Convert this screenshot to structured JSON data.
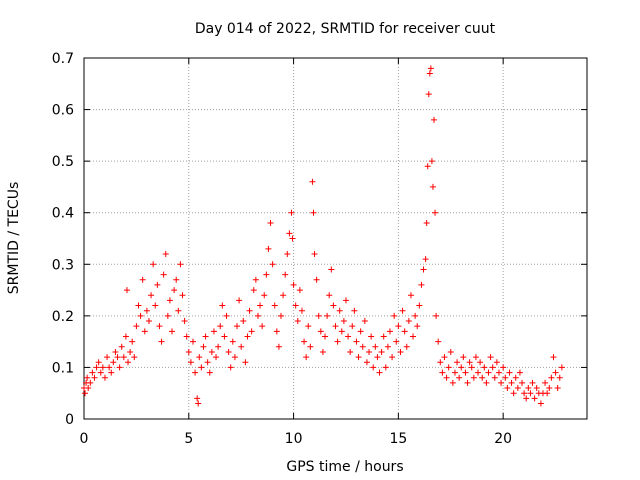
{
  "chart_data": {
    "type": "scatter",
    "title": "Day 014 of 2022, SRMTID for receiver cuut",
    "xlabel": "GPS time / hours",
    "ylabel": "SRMTID / TECUs",
    "xlim": [
      0,
      24
    ],
    "ylim": [
      0,
      0.7
    ],
    "xticks": [
      0,
      5,
      10,
      15,
      20
    ],
    "yticks": [
      0,
      0.1,
      0.2,
      0.3,
      0.4,
      0.5,
      0.6,
      0.7
    ],
    "grid": true,
    "marker": "+",
    "color": "#ff0000",
    "series": [
      {
        "name": "SRMTID",
        "points": [
          [
            0.0,
            0.06
          ],
          [
            0.05,
            0.05
          ],
          [
            0.1,
            0.07
          ],
          [
            0.15,
            0.08
          ],
          [
            0.2,
            0.06
          ],
          [
            0.3,
            0.07
          ],
          [
            0.4,
            0.09
          ],
          [
            0.5,
            0.08
          ],
          [
            0.6,
            0.1
          ],
          [
            0.7,
            0.11
          ],
          [
            0.8,
            0.09
          ],
          [
            0.9,
            0.1
          ],
          [
            1.0,
            0.08
          ],
          [
            1.1,
            0.12
          ],
          [
            1.2,
            0.1
          ],
          [
            1.3,
            0.09
          ],
          [
            1.4,
            0.11
          ],
          [
            1.5,
            0.13
          ],
          [
            1.6,
            0.12
          ],
          [
            1.7,
            0.1
          ],
          [
            1.8,
            0.14
          ],
          [
            1.9,
            0.12
          ],
          [
            2.0,
            0.16
          ],
          [
            2.05,
            0.25
          ],
          [
            2.1,
            0.11
          ],
          [
            2.2,
            0.13
          ],
          [
            2.3,
            0.15
          ],
          [
            2.4,
            0.12
          ],
          [
            2.5,
            0.18
          ],
          [
            2.6,
            0.22
          ],
          [
            2.7,
            0.2
          ],
          [
            2.8,
            0.27
          ],
          [
            2.9,
            0.17
          ],
          [
            3.0,
            0.21
          ],
          [
            3.1,
            0.19
          ],
          [
            3.2,
            0.24
          ],
          [
            3.3,
            0.3
          ],
          [
            3.4,
            0.22
          ],
          [
            3.5,
            0.26
          ],
          [
            3.6,
            0.18
          ],
          [
            3.7,
            0.15
          ],
          [
            3.8,
            0.28
          ],
          [
            3.9,
            0.32
          ],
          [
            4.0,
            0.2
          ],
          [
            4.1,
            0.23
          ],
          [
            4.2,
            0.17
          ],
          [
            4.3,
            0.25
          ],
          [
            4.4,
            0.27
          ],
          [
            4.5,
            0.21
          ],
          [
            4.6,
            0.3
          ],
          [
            4.7,
            0.24
          ],
          [
            4.8,
            0.19
          ],
          [
            4.9,
            0.16
          ],
          [
            5.0,
            0.13
          ],
          [
            5.1,
            0.11
          ],
          [
            5.2,
            0.15
          ],
          [
            5.3,
            0.09
          ],
          [
            5.4,
            0.04
          ],
          [
            5.45,
            0.03
          ],
          [
            5.5,
            0.12
          ],
          [
            5.6,
            0.1
          ],
          [
            5.7,
            0.14
          ],
          [
            5.8,
            0.16
          ],
          [
            5.9,
            0.11
          ],
          [
            6.0,
            0.09
          ],
          [
            6.1,
            0.13
          ],
          [
            6.2,
            0.17
          ],
          [
            6.3,
            0.12
          ],
          [
            6.4,
            0.14
          ],
          [
            6.5,
            0.18
          ],
          [
            6.6,
            0.22
          ],
          [
            6.7,
            0.16
          ],
          [
            6.8,
            0.2
          ],
          [
            6.9,
            0.13
          ],
          [
            7.0,
            0.1
          ],
          [
            7.1,
            0.15
          ],
          [
            7.2,
            0.12
          ],
          [
            7.3,
            0.18
          ],
          [
            7.4,
            0.23
          ],
          [
            7.5,
            0.14
          ],
          [
            7.6,
            0.19
          ],
          [
            7.7,
            0.11
          ],
          [
            7.8,
            0.16
          ],
          [
            7.9,
            0.21
          ],
          [
            8.0,
            0.17
          ],
          [
            8.1,
            0.25
          ],
          [
            8.2,
            0.27
          ],
          [
            8.3,
            0.2
          ],
          [
            8.4,
            0.22
          ],
          [
            8.5,
            0.18
          ],
          [
            8.6,
            0.24
          ],
          [
            8.7,
            0.28
          ],
          [
            8.8,
            0.33
          ],
          [
            8.9,
            0.38
          ],
          [
            9.0,
            0.3
          ],
          [
            9.1,
            0.22
          ],
          [
            9.2,
            0.17
          ],
          [
            9.3,
            0.14
          ],
          [
            9.4,
            0.2
          ],
          [
            9.5,
            0.24
          ],
          [
            9.6,
            0.28
          ],
          [
            9.7,
            0.32
          ],
          [
            9.8,
            0.36
          ],
          [
            9.9,
            0.4
          ],
          [
            9.95,
            0.35
          ],
          [
            10.0,
            0.26
          ],
          [
            10.1,
            0.22
          ],
          [
            10.2,
            0.19
          ],
          [
            10.3,
            0.25
          ],
          [
            10.4,
            0.21
          ],
          [
            10.5,
            0.15
          ],
          [
            10.6,
            0.12
          ],
          [
            10.7,
            0.18
          ],
          [
            10.8,
            0.14
          ],
          [
            10.9,
            0.46
          ],
          [
            10.95,
            0.4
          ],
          [
            11.0,
            0.32
          ],
          [
            11.1,
            0.27
          ],
          [
            11.2,
            0.2
          ],
          [
            11.3,
            0.17
          ],
          [
            11.4,
            0.13
          ],
          [
            11.5,
            0.16
          ],
          [
            11.6,
            0.2
          ],
          [
            11.7,
            0.24
          ],
          [
            11.8,
            0.29
          ],
          [
            11.9,
            0.22
          ],
          [
            12.0,
            0.18
          ],
          [
            12.1,
            0.15
          ],
          [
            12.2,
            0.21
          ],
          [
            12.3,
            0.17
          ],
          [
            12.4,
            0.19
          ],
          [
            12.5,
            0.23
          ],
          [
            12.6,
            0.16
          ],
          [
            12.7,
            0.13
          ],
          [
            12.8,
            0.18
          ],
          [
            12.9,
            0.21
          ],
          [
            13.0,
            0.15
          ],
          [
            13.1,
            0.12
          ],
          [
            13.2,
            0.17
          ],
          [
            13.3,
            0.14
          ],
          [
            13.4,
            0.19
          ],
          [
            13.5,
            0.11
          ],
          [
            13.6,
            0.13
          ],
          [
            13.7,
            0.16
          ],
          [
            13.8,
            0.1
          ],
          [
            13.9,
            0.14
          ],
          [
            14.0,
            0.12
          ],
          [
            14.1,
            0.09
          ],
          [
            14.2,
            0.13
          ],
          [
            14.3,
            0.16
          ],
          [
            14.4,
            0.1
          ],
          [
            14.5,
            0.14
          ],
          [
            14.6,
            0.17
          ],
          [
            14.7,
            0.12
          ],
          [
            14.8,
            0.2
          ],
          [
            14.9,
            0.15
          ],
          [
            15.0,
            0.18
          ],
          [
            15.1,
            0.13
          ],
          [
            15.2,
            0.21
          ],
          [
            15.3,
            0.17
          ],
          [
            15.4,
            0.14
          ],
          [
            15.5,
            0.19
          ],
          [
            15.6,
            0.24
          ],
          [
            15.7,
            0.16
          ],
          [
            15.8,
            0.2
          ],
          [
            15.9,
            0.18
          ],
          [
            16.0,
            0.22
          ],
          [
            16.1,
            0.26
          ],
          [
            16.2,
            0.29
          ],
          [
            16.3,
            0.31
          ],
          [
            16.35,
            0.38
          ],
          [
            16.4,
            0.49
          ],
          [
            16.45,
            0.63
          ],
          [
            16.5,
            0.67
          ],
          [
            16.55,
            0.68
          ],
          [
            16.6,
            0.5
          ],
          [
            16.65,
            0.45
          ],
          [
            16.7,
            0.58
          ],
          [
            16.75,
            0.4
          ],
          [
            16.8,
            0.2
          ],
          [
            16.9,
            0.15
          ],
          [
            17.0,
            0.11
          ],
          [
            17.1,
            0.09
          ],
          [
            17.2,
            0.12
          ],
          [
            17.3,
            0.08
          ],
          [
            17.4,
            0.1
          ],
          [
            17.5,
            0.13
          ],
          [
            17.6,
            0.07
          ],
          [
            17.7,
            0.09
          ],
          [
            17.8,
            0.11
          ],
          [
            17.9,
            0.08
          ],
          [
            18.0,
            0.1
          ],
          [
            18.1,
            0.12
          ],
          [
            18.2,
            0.09
          ],
          [
            18.3,
            0.07
          ],
          [
            18.4,
            0.11
          ],
          [
            18.5,
            0.1
          ],
          [
            18.6,
            0.08
          ],
          [
            18.7,
            0.12
          ],
          [
            18.8,
            0.09
          ],
          [
            18.9,
            0.11
          ],
          [
            19.0,
            0.08
          ],
          [
            19.1,
            0.1
          ],
          [
            19.2,
            0.07
          ],
          [
            19.3,
            0.09
          ],
          [
            19.4,
            0.12
          ],
          [
            19.5,
            0.1
          ],
          [
            19.6,
            0.08
          ],
          [
            19.7,
            0.11
          ],
          [
            19.8,
            0.09
          ],
          [
            19.9,
            0.07
          ],
          [
            20.0,
            0.1
          ],
          [
            20.1,
            0.08
          ],
          [
            20.2,
            0.06
          ],
          [
            20.3,
            0.09
          ],
          [
            20.4,
            0.07
          ],
          [
            20.5,
            0.05
          ],
          [
            20.6,
            0.08
          ],
          [
            20.7,
            0.06
          ],
          [
            20.8,
            0.09
          ],
          [
            20.9,
            0.07
          ],
          [
            21.0,
            0.05
          ],
          [
            21.1,
            0.04
          ],
          [
            21.2,
            0.06
          ],
          [
            21.3,
            0.05
          ],
          [
            21.4,
            0.07
          ],
          [
            21.5,
            0.04
          ],
          [
            21.6,
            0.06
          ],
          [
            21.7,
            0.05
          ],
          [
            21.8,
            0.03
          ],
          [
            21.9,
            0.05
          ],
          [
            22.0,
            0.07
          ],
          [
            22.1,
            0.05
          ],
          [
            22.2,
            0.06
          ],
          [
            22.3,
            0.08
          ],
          [
            22.4,
            0.12
          ],
          [
            22.5,
            0.09
          ],
          [
            22.6,
            0.06
          ],
          [
            22.7,
            0.08
          ],
          [
            22.8,
            0.1
          ]
        ]
      }
    ]
  }
}
